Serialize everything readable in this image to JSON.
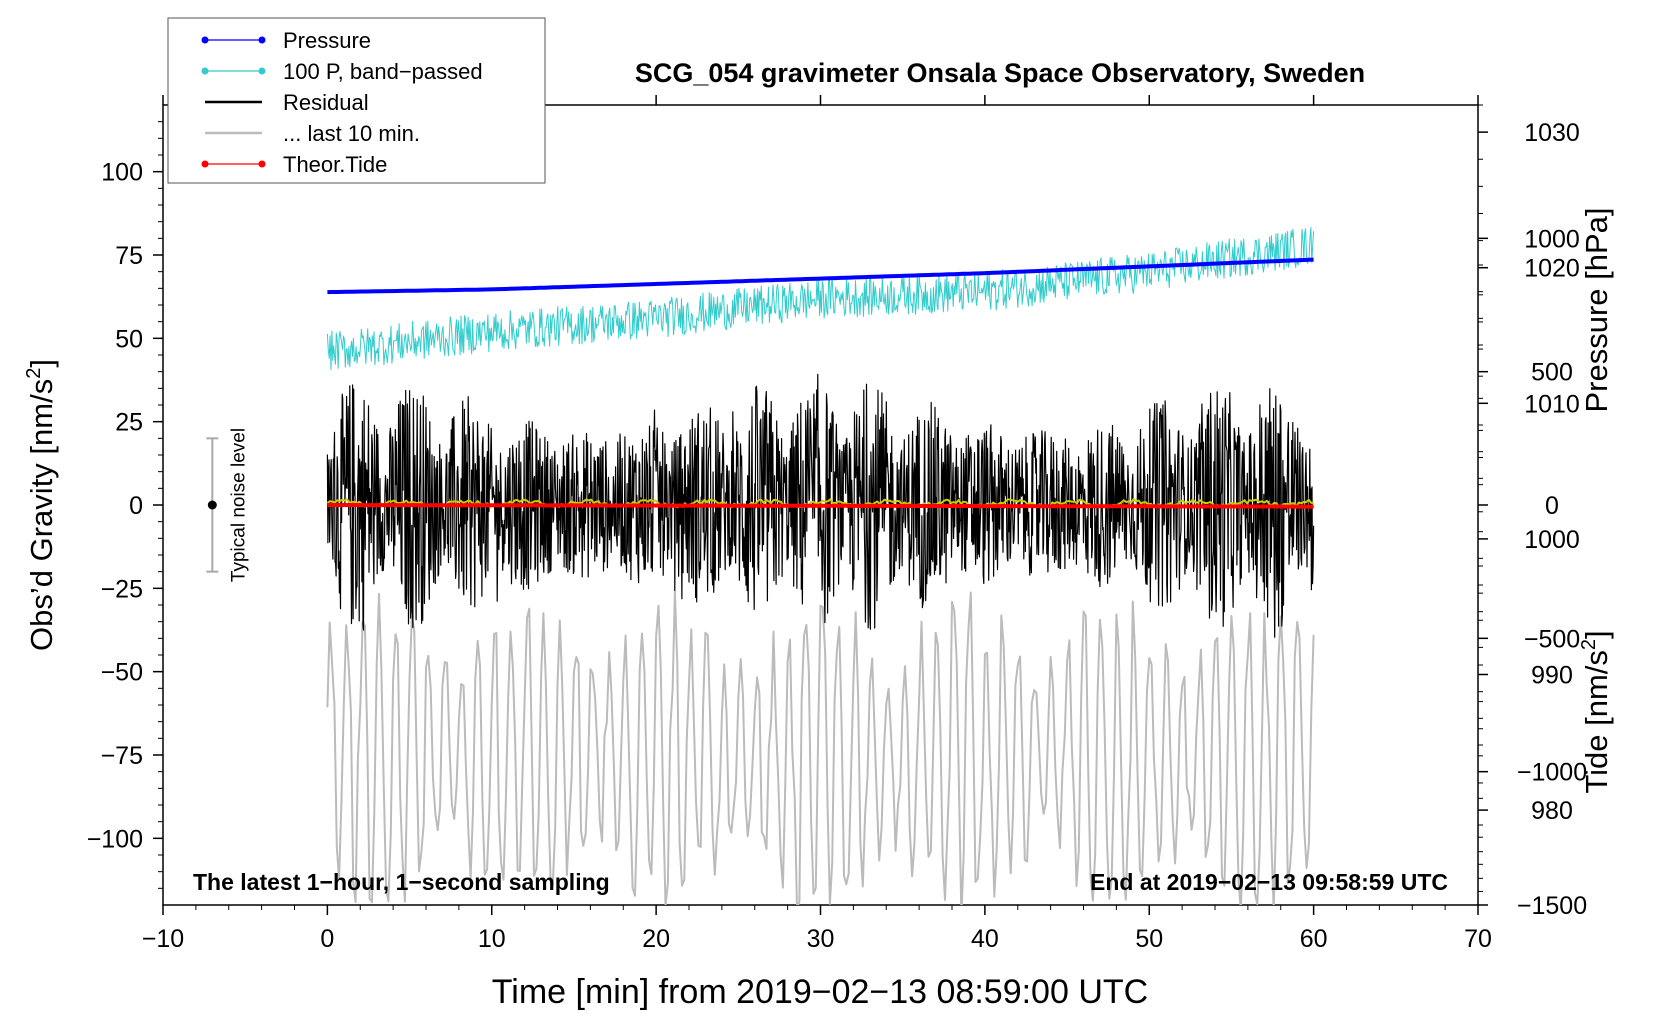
{
  "chart_data": {
    "type": "line",
    "title": "SCG_054 gravimeter Onsala Space Observatory, Sweden",
    "xlabel": "Time [min] from 2019−02−13 08:59:00 UTC",
    "ylabel_left_main": "Obs’d Gravity [nm/s",
    "ylabel_left_sup": "2",
    "ylabel_left_end": "]",
    "ylabel_right_pressure": "Pressure [hPa]",
    "ylabel_right_tide_main": "Tide [nm/s",
    "ylabel_right_tide_sup": "2",
    "ylabel_right_tide_end": "]",
    "xlim": [
      -10,
      70
    ],
    "ylim": [
      -120,
      120
    ],
    "pressure_lim": [
      973,
      1032
    ],
    "tide_lim": [
      -1500,
      1500
    ],
    "x_ticks": [
      "−10",
      "0",
      "10",
      "20",
      "30",
      "40",
      "50",
      "60",
      "70"
    ],
    "x_tick_values": [
      -10,
      0,
      10,
      20,
      30,
      40,
      50,
      60,
      70
    ],
    "y_ticks": [
      "100",
      "75",
      "50",
      "25",
      "0",
      "−25",
      "−50",
      "−75",
      "−100"
    ],
    "y_tick_values": [
      100,
      75,
      50,
      25,
      0,
      -25,
      -50,
      -75,
      -100
    ],
    "pressure_ticks": [
      "1030",
      "1020",
      "1010",
      "1000",
      "990",
      "980"
    ],
    "pressure_tick_values": [
      1030,
      1020,
      1010,
      1000,
      990,
      980
    ],
    "tide_ticks": [
      "1000",
      "500",
      "0",
      "−500",
      "−1000",
      "−1500"
    ],
    "tide_tick_values": [
      1000,
      500,
      0,
      -500,
      -1000,
      -1500
    ],
    "legend_position": "top-left",
    "legend": [
      {
        "label": "Pressure",
        "color": "#0000ff",
        "marker": true
      },
      {
        "label": "100 P, band−passed",
        "color": "#33cccc",
        "marker": true
      },
      {
        "label": "Residual",
        "color": "#000000",
        "marker": false
      },
      {
        "label": "... last 10 min.",
        "color": "#bbbbbb",
        "marker": false
      },
      {
        "label": "Theor.Tide",
        "color": "#ff0000",
        "marker": true
      }
    ],
    "annotations": {
      "left_note": "The latest 1−hour, 1−second sampling",
      "right_note": "End at 2019−02−13 09:58:59 UTC",
      "noise_label": "Typical noise level",
      "noise_center": 0,
      "noise_half_range": 20,
      "noise_x": -7
    },
    "series": [
      {
        "name": "Pressure",
        "color": "#0000ff",
        "axis": "pressure",
        "x": [
          0,
          10,
          20,
          30,
          40,
          50,
          60
        ],
        "values": [
          1018.2,
          1018.4,
          1018.8,
          1019.2,
          1019.6,
          1020.1,
          1020.6
        ]
      },
      {
        "name": "100 P, band−passed",
        "color": "#33cccc",
        "axis": "gravity",
        "x": [
          0,
          10,
          20,
          30,
          40,
          50,
          60
        ],
        "values": [
          46,
          52,
          56,
          62,
          64,
          70,
          78
        ],
        "amplitude": 6
      },
      {
        "name": "Residual",
        "color": "#000000",
        "axis": "gravity",
        "x": [
          0,
          60
        ],
        "values": [
          0,
          0
        ],
        "amplitude": 40
      },
      {
        "name": "... last 10 min.",
        "color": "#bbbbbb",
        "axis": "gravity",
        "x": [
          0,
          60
        ],
        "values": [
          -75,
          -75
        ],
        "amplitude": 45
      },
      {
        "name": "Smoothed residual",
        "color": "#cccc00",
        "axis": "gravity",
        "x": [
          0,
          60
        ],
        "values": [
          0.5,
          0.5
        ],
        "amplitude": 1
      },
      {
        "name": "Theor.Tide",
        "color": "#ff0000",
        "axis": "tide",
        "x": [
          0,
          10,
          20,
          30,
          40,
          50,
          60
        ],
        "values": [
          0,
          -1,
          -2,
          -3,
          -4,
          -5,
          -6
        ]
      }
    ]
  }
}
